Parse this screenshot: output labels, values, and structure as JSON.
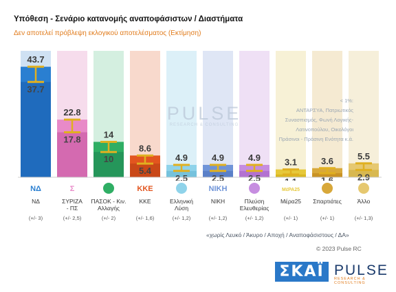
{
  "header": {
    "title": "Υπόθεση - Σενάριο κατανομής αναποφάσιστων / Διαστήματα",
    "subtitle": "Δεν αποτελεί πρόβλεψη εκλογικού αποτελέσματος   (Εκτίμηση)"
  },
  "watermark": {
    "word": "PULSE",
    "sub": "RESEARCH & CONSULTING"
  },
  "other_note": {
    "line1": "< 1%:",
    "line2": "ΑΝΤΑΡΣΥΑ, Πατριωτικός",
    "line3": "Συνασπισμός, Φωνή Λογικής-",
    "line4": "Λατινοπούλου, Οικολόγοι",
    "line5": "Πράσινοι - Πράσινη Ενότητα   κ.ά."
  },
  "footer": {
    "note": "«χωρίς Λευκό / Άκυρο / Αποχή / Αναποφάσιστους / ΔΑ»",
    "copyright": "© 2023 Pulse RC"
  },
  "logos": {
    "skai": "ΣΚΑΪ",
    "pulse": "PULSE",
    "pulse_sub": "RESEARCH & CONSULTING"
  },
  "chart_data": {
    "type": "bar",
    "categories": [
      "ΝΔ",
      "ΣΥΡΙΖΑ - ΠΣ",
      "ΠΑΣΟΚ - Κιν. Αλλαγής",
      "ΚΚΕ",
      "Ελληνική Λύση",
      "ΝΙΚΗ",
      "Πλεύση Ελευθερίας",
      "Μέρα25",
      "Σπαρτιάτες",
      "Άλλο"
    ],
    "category_lines": [
      [
        "ΝΔ"
      ],
      [
        "ΣΥΡΙΖΑ",
        "- ΠΣ"
      ],
      [
        "ΠΑΣΟΚ - Κιν.",
        "Αλλαγής"
      ],
      [
        "ΚΚΕ"
      ],
      [
        "Ελληνική",
        "Λύση"
      ],
      [
        "ΝΙΚΗ"
      ],
      [
        "Πλεύση",
        "Ελευθερίας"
      ],
      [
        "Μέρα25"
      ],
      [
        "Σπαρτιάτες"
      ],
      [
        "Άλλο"
      ]
    ],
    "series": [
      {
        "values": [
          43.7,
          22.8,
          14,
          8.6,
          4.9,
          4.9,
          4.9,
          3.1,
          3.6,
          5.5
        ]
      },
      {
        "values": [
          37.7,
          17.8,
          10,
          5.4,
          2.5,
          2.5,
          2.5,
          1.1,
          1.6,
          2.9
        ]
      }
    ],
    "labels_upper": [
      "43.7",
      "22.8",
      "14",
      "8.6",
      "4.9",
      "4.9",
      "4.9",
      "3.1",
      "3.6",
      "5.5"
    ],
    "labels_lower": [
      "37.7",
      "17.8",
      "10",
      "5.4",
      "2.5",
      "2.5",
      "2.5",
      "1.1",
      "1.6",
      "2.9"
    ],
    "margins": [
      "(+/- 3)",
      "(+/- 2,5)",
      "(+/- 2)",
      "(+/- 1,6)",
      "(+/- 1,2)",
      "(+/- 1,2)",
      "(+/- 1,2)",
      "(+/- 1)",
      "(+/- 1)",
      "(+/- 1,3)"
    ],
    "logo_texts": [
      "ΝΔ",
      "Σ",
      "",
      "ΚΚΕ",
      "",
      "ΝΙΚΗ",
      "",
      "ΜέΡΑ25",
      "",
      ""
    ],
    "colors": {
      "upper": [
        "#2a7fd1",
        "#e88ac8",
        "#2fae64",
        "#e2551f",
        "#8fd3ea",
        "#6f94d8",
        "#c68de0",
        "#e6c83a",
        "#d8a83a",
        "#e6c870"
      ],
      "lower": [
        "#1f6bbd",
        "#d46ab0",
        "#25965a",
        "#c94818",
        "#75c2dd",
        "#5a80c8",
        "#b372d1",
        "#d9b823",
        "#c99224",
        "#d8b850"
      ],
      "bg": [
        "#cfe1f3",
        "#f6dcec",
        "#d4efe0",
        "#f8d9cc",
        "#dcf0f8",
        "#dfe6f5",
        "#efe0f5",
        "#f7f1d6",
        "#f5ead2",
        "#f6efda"
      ],
      "whisker": "#e0b020"
    },
    "ylim": [
      0,
      50
    ]
  }
}
